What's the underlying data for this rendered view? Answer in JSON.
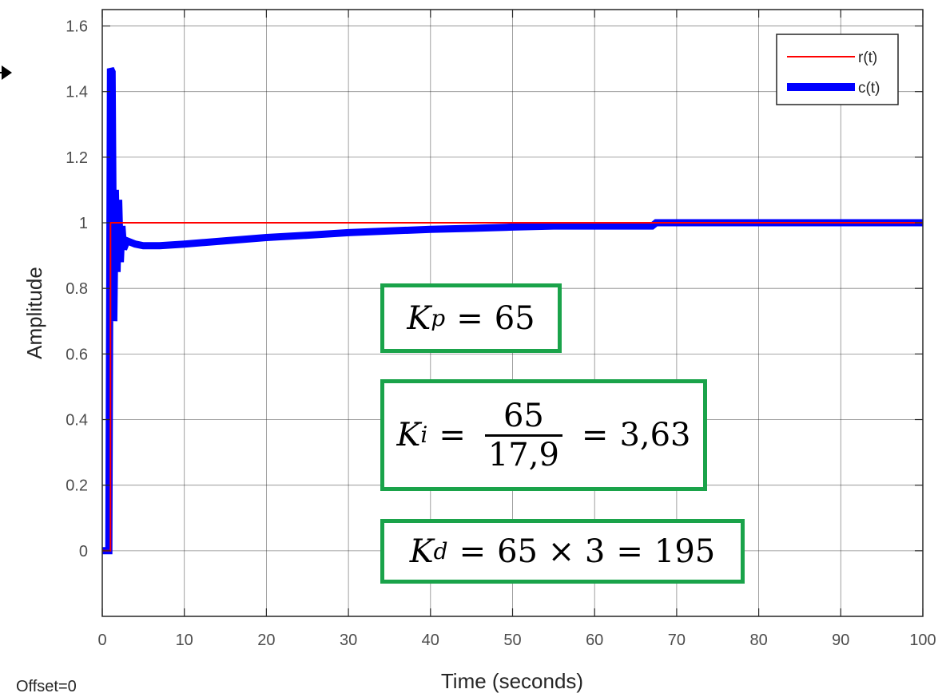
{
  "chart_data": {
    "type": "line",
    "title": "",
    "xlabel": "Time (seconds)",
    "ylabel": "Amplitude",
    "xlim": [
      0,
      100
    ],
    "ylim": [
      -0.2,
      1.65
    ],
    "xticks": [
      0,
      10,
      20,
      30,
      40,
      50,
      60,
      70,
      80,
      90,
      100
    ],
    "yticks": [
      0,
      0.2,
      0.4,
      0.6,
      0.8,
      1,
      1.2,
      1.4,
      1.6
    ],
    "xtick_labels": [
      "0",
      "10",
      "20",
      "30",
      "40",
      "50",
      "60",
      "70",
      "80",
      "90",
      "100"
    ],
    "ytick_labels": [
      "0",
      "0.2",
      "0.4",
      "0.6",
      "0.8",
      "1",
      "1.2",
      "1.4",
      "1.6"
    ],
    "grid": true,
    "legend_position": "top-right",
    "series": [
      {
        "name": "r(t)",
        "color": "#ff0000",
        "x": [
          0,
          1,
          1,
          100
        ],
        "y": [
          0,
          0,
          1,
          1
        ]
      },
      {
        "name": "c(t)",
        "color": "#0000ff",
        "x": [
          0,
          0.8,
          1.0,
          1.2,
          1.4,
          1.6,
          1.8,
          2.0,
          2.2,
          2.4,
          2.6,
          3,
          4,
          5,
          7,
          10,
          15,
          20,
          25,
          30,
          35,
          40,
          45,
          50,
          55,
          60,
          67,
          67.5,
          100
        ],
        "y": [
          0,
          0,
          1.47,
          1.46,
          0.7,
          1.1,
          0.85,
          1.07,
          0.88,
          0.99,
          0.92,
          0.945,
          0.935,
          0.93,
          0.93,
          0.935,
          0.945,
          0.955,
          0.962,
          0.97,
          0.975,
          0.98,
          0.983,
          0.987,
          0.99,
          0.99,
          0.99,
          1.0,
          1.0
        ]
      }
    ],
    "annotations": {
      "kp": {
        "lhs": "K",
        "sub": "p",
        "eq": "=",
        "rhs": "65"
      },
      "ki": {
        "lhs": "K",
        "sub": "i",
        "eq": "=",
        "num": "65",
        "den": "17,9",
        "eq2": "=",
        "rhs": "3,63"
      },
      "kd": {
        "lhs": "K",
        "sub": "d",
        "eq": "=",
        "expr": "65 × 3",
        "eq2": "=",
        "rhs": "195"
      }
    },
    "offset_label": "Offset=0"
  }
}
